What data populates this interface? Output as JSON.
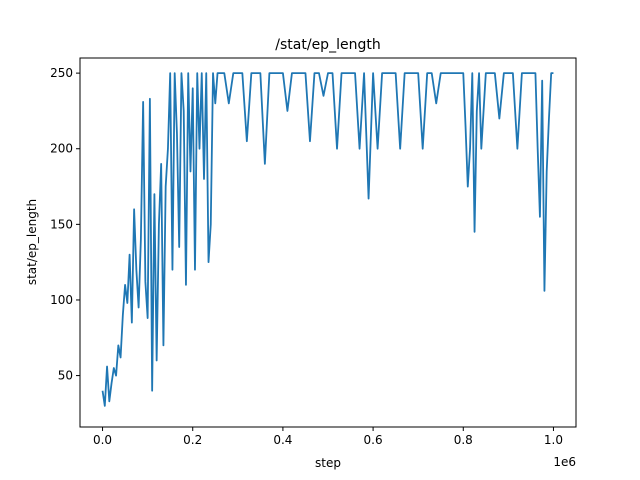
{
  "chart_data": {
    "type": "line",
    "title": "/stat/ep_length",
    "xlabel": "step",
    "ylabel": "stat/ep_length",
    "x_offset_label": "1e6",
    "xlim": [
      -50000,
      1050000
    ],
    "ylim": [
      16,
      260
    ],
    "xticks": [
      0,
      200000,
      400000,
      600000,
      800000,
      1000000
    ],
    "xtick_labels": [
      "0.0",
      "0.2",
      "0.4",
      "0.6",
      "0.8",
      "1.0"
    ],
    "yticks": [
      50,
      100,
      150,
      200,
      250
    ],
    "ytick_labels": [
      "50",
      "100",
      "150",
      "200",
      "250"
    ],
    "grid": false,
    "series": [
      {
        "color": "#1f77b4",
        "x": [
          0,
          5000,
          10000,
          15000,
          20000,
          25000,
          30000,
          35000,
          40000,
          45000,
          50000,
          55000,
          60000,
          65000,
          70000,
          75000,
          80000,
          85000,
          90000,
          95000,
          100000,
          105000,
          110000,
          115000,
          120000,
          125000,
          130000,
          135000,
          140000,
          145000,
          150000,
          155000,
          160000,
          165000,
          170000,
          175000,
          180000,
          185000,
          190000,
          195000,
          200000,
          205000,
          210000,
          215000,
          220000,
          225000,
          230000,
          235000,
          240000,
          245000,
          250000,
          255000,
          260000,
          270000,
          280000,
          290000,
          300000,
          310000,
          320000,
          330000,
          340000,
          350000,
          360000,
          370000,
          380000,
          390000,
          400000,
          410000,
          420000,
          430000,
          440000,
          450000,
          460000,
          470000,
          480000,
          490000,
          500000,
          510000,
          520000,
          530000,
          540000,
          550000,
          560000,
          570000,
          580000,
          590000,
          600000,
          610000,
          620000,
          630000,
          640000,
          650000,
          660000,
          670000,
          680000,
          690000,
          700000,
          710000,
          720000,
          730000,
          740000,
          750000,
          760000,
          770000,
          780000,
          790000,
          800000,
          805000,
          810000,
          815000,
          820000,
          825000,
          830000,
          835000,
          840000,
          850000,
          860000,
          870000,
          880000,
          890000,
          900000,
          910000,
          920000,
          930000,
          940000,
          950000,
          960000,
          965000,
          970000,
          975000,
          980000,
          985000,
          990000,
          995000,
          1000000
        ],
        "y": [
          40,
          30,
          56,
          33,
          45,
          55,
          50,
          70,
          62,
          90,
          110,
          98,
          130,
          85,
          160,
          120,
          95,
          140,
          231,
          112,
          88,
          233,
          40,
          170,
          60,
          150,
          190,
          70,
          175,
          200,
          250,
          120,
          250,
          210,
          135,
          250,
          225,
          110,
          250,
          185,
          240,
          120,
          250,
          200,
          250,
          180,
          250,
          125,
          150,
          250,
          230,
          250,
          250,
          250,
          230,
          250,
          250,
          250,
          205,
          250,
          250,
          250,
          190,
          250,
          250,
          250,
          250,
          225,
          250,
          250,
          250,
          250,
          205,
          250,
          250,
          235,
          250,
          250,
          200,
          250,
          250,
          250,
          250,
          200,
          250,
          167,
          250,
          200,
          250,
          250,
          250,
          250,
          200,
          250,
          250,
          250,
          250,
          200,
          250,
          250,
          230,
          250,
          250,
          250,
          250,
          250,
          250,
          215,
          175,
          200,
          250,
          145,
          225,
          250,
          200,
          250,
          250,
          250,
          220,
          250,
          250,
          250,
          200,
          250,
          250,
          250,
          250,
          200,
          155,
          245,
          106,
          185,
          220,
          250,
          250
        ]
      }
    ]
  }
}
